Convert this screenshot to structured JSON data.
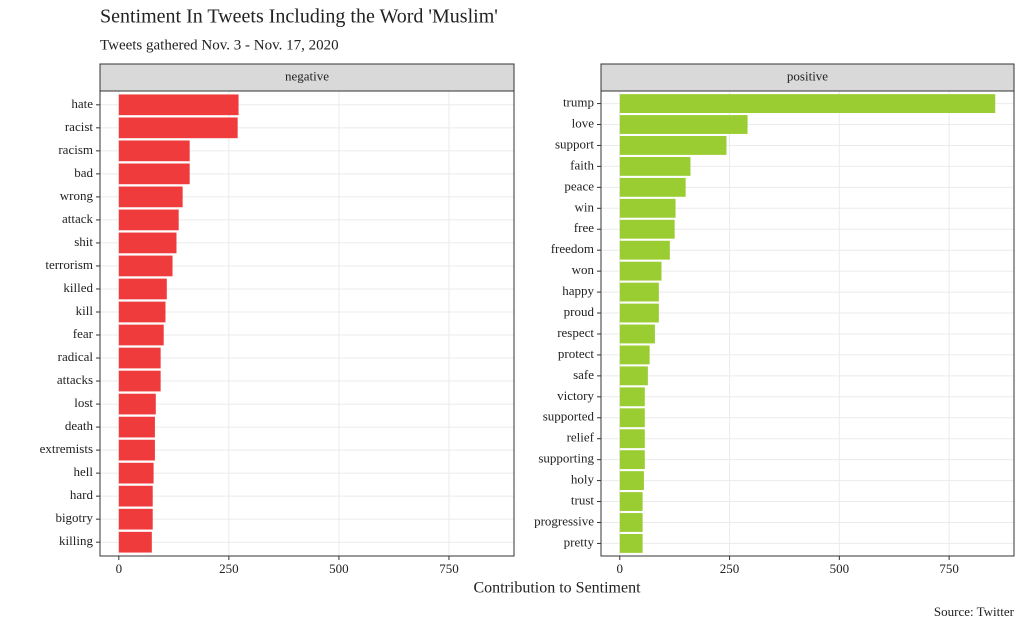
{
  "chart_data": {
    "type": "bar",
    "orientation": "horizontal",
    "title": "Sentiment In Tweets Including the Word 'Muslim'",
    "subtitle": "Tweets gathered Nov. 3 - Nov. 17, 2020",
    "xlabel": "Contribution to Sentiment",
    "caption": "Source: Twitter",
    "xlim": [
      -42.75,
      897.75
    ],
    "xticks": [
      0,
      250,
      500,
      750
    ],
    "grid": true,
    "panels": [
      {
        "name": "negative",
        "color": "#ef3b3b",
        "categories": [
          "hate",
          "racist",
          "racism",
          "bad",
          "wrong",
          "attack",
          "shit",
          "terrorism",
          "killed",
          "kill",
          "fear",
          "radical",
          "attacks",
          "lost",
          "death",
          "extremists",
          "hell",
          "hard",
          "bigotry",
          "killing"
        ],
        "values": [
          272,
          270,
          161,
          161,
          145,
          136,
          131,
          122,
          109,
          106,
          102,
          95,
          95,
          84,
          82,
          82,
          79,
          77,
          77,
          75
        ]
      },
      {
        "name": "positive",
        "color": "#9acd32",
        "categories": [
          "trump",
          "love",
          "support",
          "faith",
          "peace",
          "win",
          "free",
          "freedom",
          "won",
          "happy",
          "proud",
          "respect",
          "protect",
          "safe",
          "victory",
          "supported",
          "relief",
          "supporting",
          "holy",
          "trust",
          "progressive",
          "pretty"
        ],
        "values": [
          855,
          291,
          243,
          161,
          150,
          127,
          125,
          114,
          95,
          89,
          89,
          80,
          68,
          64,
          57,
          57,
          57,
          57,
          55,
          52,
          52,
          52
        ]
      }
    ]
  }
}
